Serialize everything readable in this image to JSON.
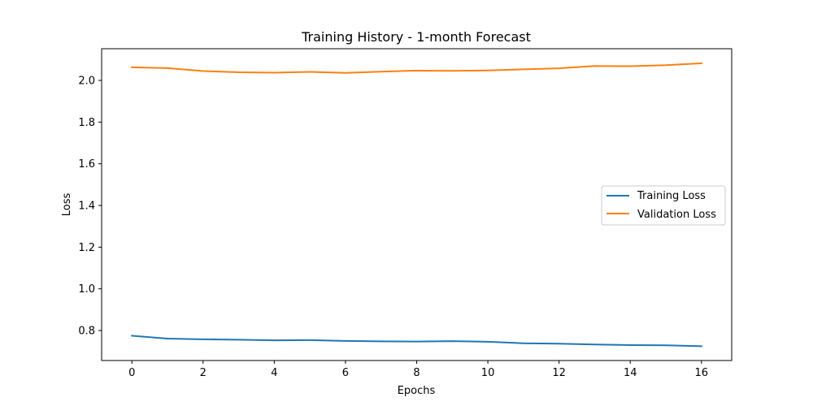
{
  "chart_data": {
    "type": "line",
    "title": "Training History - 1-month Forecast",
    "xlabel": "Epochs",
    "ylabel": "Loss",
    "xlim": [
      -0.85,
      16.85
    ],
    "ylim": [
      0.656,
      2.152
    ],
    "x_ticks": [
      0,
      2,
      4,
      6,
      8,
      10,
      12,
      14,
      16
    ],
    "y_ticks": [
      0.8,
      1.0,
      1.2,
      1.4,
      1.6,
      1.8,
      2.0
    ],
    "x_tick_labels": [
      "0",
      "2",
      "4",
      "6",
      "8",
      "10",
      "12",
      "14",
      "16"
    ],
    "y_tick_labels": [
      "0.8",
      "1.0",
      "1.2",
      "1.4",
      "1.6",
      "1.8",
      "2.0"
    ],
    "grid": false,
    "legend_position": "center-right",
    "x": [
      0,
      1,
      2,
      3,
      4,
      5,
      6,
      7,
      8,
      9,
      10,
      11,
      12,
      13,
      14,
      15,
      16
    ],
    "series": [
      {
        "name": "Training Loss",
        "color": "#1f77b4",
        "values": [
          0.775,
          0.761,
          0.758,
          0.756,
          0.753,
          0.754,
          0.75,
          0.748,
          0.747,
          0.749,
          0.746,
          0.739,
          0.737,
          0.733,
          0.73,
          0.729,
          0.725
        ]
      },
      {
        "name": "Validation Loss",
        "color": "#ff7f0e",
        "values": [
          2.063,
          2.059,
          2.045,
          2.039,
          2.037,
          2.041,
          2.036,
          2.042,
          2.047,
          2.046,
          2.048,
          2.053,
          2.058,
          2.069,
          2.068,
          2.073,
          2.082
        ]
      }
    ]
  }
}
